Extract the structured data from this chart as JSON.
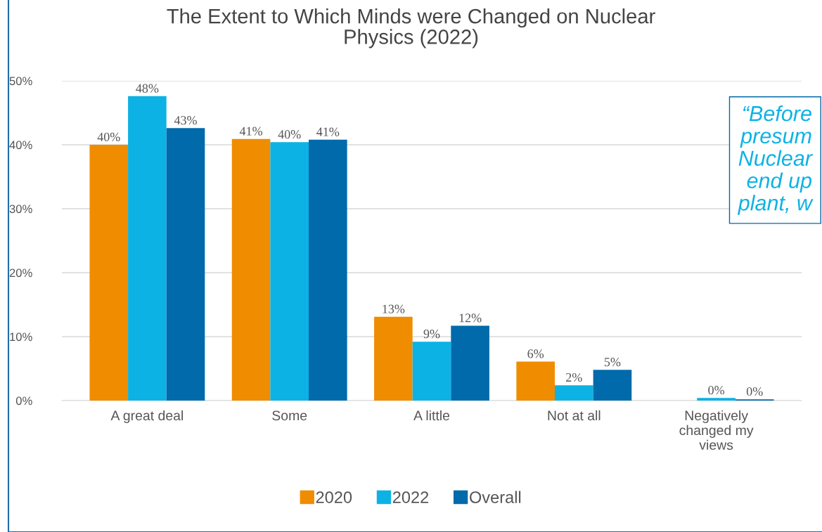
{
  "chart_data": {
    "type": "bar",
    "title": "The Extent to Which Minds were Changed on Nuclear\nPhysics (2022)",
    "categories": [
      "A great deal",
      "Some",
      "A little",
      "Not at all",
      "Negatively\nchanged my\nviews"
    ],
    "series": [
      {
        "name": "2020",
        "color": "#f08c00",
        "values": [
          40.0,
          40.9,
          13.1,
          6.1,
          null
        ],
        "value_labels": [
          "40%",
          "41%",
          "13%",
          "6%",
          null
        ]
      },
      {
        "name": "2022",
        "color": "#0db2e4",
        "values": [
          47.6,
          40.4,
          9.2,
          2.4,
          0.4
        ],
        "value_labels": [
          "48%",
          "40%",
          "9%",
          "2%",
          "0%"
        ]
      },
      {
        "name": "Overall",
        "color": "#006aab",
        "values": [
          42.6,
          40.8,
          11.7,
          4.8,
          0.2
        ],
        "value_labels": [
          "43%",
          "41%",
          "12%",
          "5%",
          "0%"
        ]
      }
    ],
    "ylim": [
      0,
      50
    ],
    "yticks": [
      {
        "value": 0,
        "label": "0%"
      },
      {
        "value": 10,
        "label": "10%"
      },
      {
        "value": 20,
        "label": "20%"
      },
      {
        "value": 30,
        "label": "30%"
      },
      {
        "value": 40,
        "label": "40%"
      },
      {
        "value": 50,
        "label": "50%"
      }
    ],
    "grid": "y",
    "legend": "bottom",
    "annotations": [
      "“Before\npresum\nNuclear\nend up\nplant, w"
    ]
  }
}
